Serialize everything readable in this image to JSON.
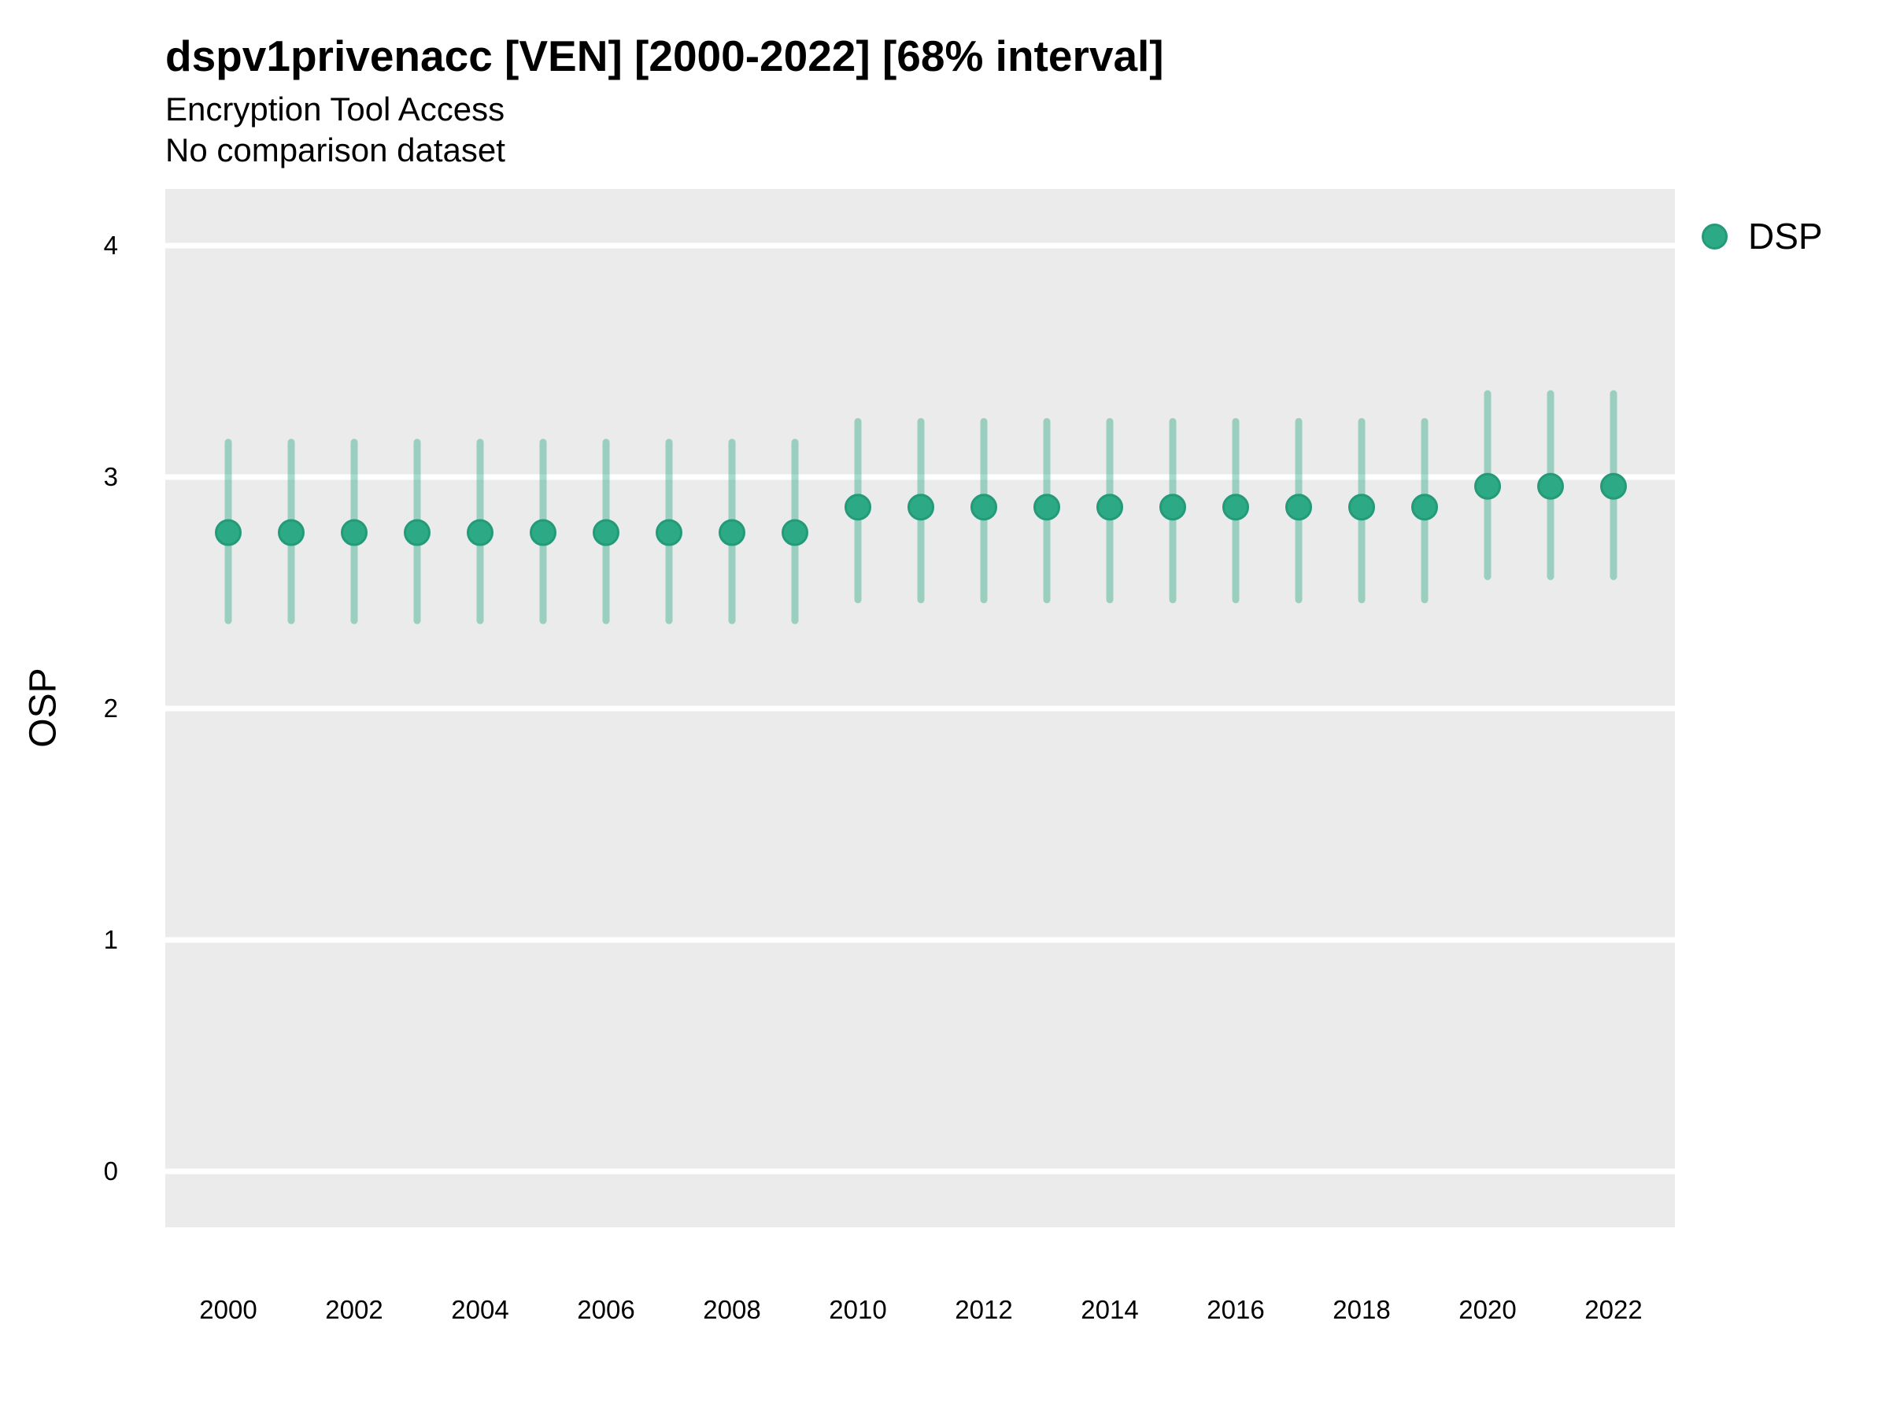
{
  "header": {
    "title": "dspv1privenacc [VEN] [2000-2022] [68% interval]",
    "subtitle": "Encryption Tool Access",
    "note": "No comparison dataset"
  },
  "axes": {
    "y_label": "OSP",
    "y_ticks": [
      4,
      3,
      2,
      1,
      0
    ],
    "x_ticks": [
      2000,
      2002,
      2004,
      2006,
      2008,
      2010,
      2012,
      2014,
      2016,
      2018,
      2020,
      2022
    ]
  },
  "legend": {
    "position": "right",
    "items": [
      {
        "label": "DSP",
        "color": "#2ca985"
      }
    ]
  },
  "colors": {
    "panel_background": "#ebebeb",
    "gridline": "#ffffff",
    "point_fill": "#2ca985",
    "point_stroke": "#249a79",
    "interval_bar": "rgba(44,169,133,0.42)",
    "text": "#000000"
  },
  "chart_data": {
    "type": "scatter",
    "title": "dspv1privenacc [VEN] [2000-2022] [68% interval]",
    "subtitle": "Encryption Tool Access",
    "note": "No comparison dataset",
    "xlabel": "",
    "ylabel": "OSP",
    "ylim": [
      -0.25,
      4.25
    ],
    "y_ticks": [
      0,
      1,
      2,
      3,
      4
    ],
    "grid": "major-horizontal-only",
    "legend_position": "right",
    "x": [
      2000,
      2001,
      2002,
      2003,
      2004,
      2005,
      2006,
      2007,
      2008,
      2009,
      2010,
      2011,
      2012,
      2013,
      2014,
      2015,
      2016,
      2017,
      2018,
      2019,
      2020,
      2021,
      2022
    ],
    "series": [
      {
        "name": "DSP",
        "estimate": [
          2.76,
          2.76,
          2.76,
          2.76,
          2.76,
          2.76,
          2.76,
          2.76,
          2.76,
          2.76,
          2.87,
          2.87,
          2.87,
          2.87,
          2.87,
          2.87,
          2.87,
          2.87,
          2.87,
          2.87,
          2.96,
          2.96,
          2.96
        ],
        "lower_68": [
          2.38,
          2.38,
          2.38,
          2.38,
          2.38,
          2.38,
          2.38,
          2.38,
          2.38,
          2.38,
          2.47,
          2.47,
          2.47,
          2.47,
          2.47,
          2.47,
          2.47,
          2.47,
          2.47,
          2.47,
          2.57,
          2.57,
          2.57
        ],
        "upper_68": [
          3.15,
          3.15,
          3.15,
          3.15,
          3.15,
          3.15,
          3.15,
          3.15,
          3.15,
          3.15,
          3.24,
          3.24,
          3.24,
          3.24,
          3.24,
          3.24,
          3.24,
          3.24,
          3.24,
          3.24,
          3.36,
          3.36,
          3.36
        ]
      }
    ]
  }
}
